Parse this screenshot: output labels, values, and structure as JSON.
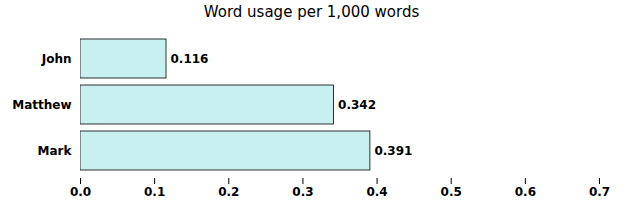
{
  "chart_data": {
    "type": "bar",
    "title": "Word usage per 1,000 words",
    "orientation": "horizontal",
    "categories": [
      "John",
      "Matthew",
      "Mark"
    ],
    "values": [
      0.116,
      0.342,
      0.391
    ],
    "color": "#c8f0f0",
    "xlim": [
      0.0,
      0.7
    ],
    "xticks": [
      {
        "value": 0.0,
        "label": "0.0"
      },
      0.1,
      0.2,
      0.3,
      0.4,
      0.5,
      0.6,
      0.7
    ],
    "data_labels": true,
    "grid": false
  }
}
